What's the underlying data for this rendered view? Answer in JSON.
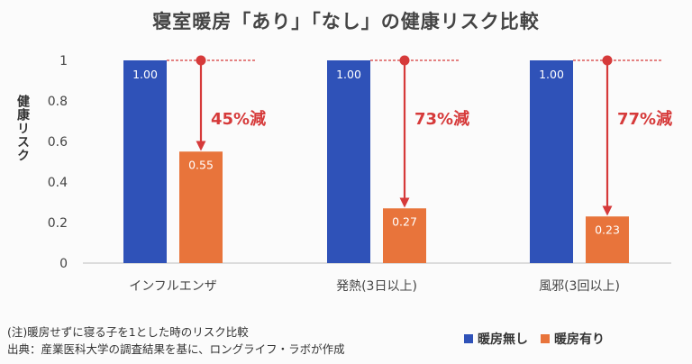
{
  "chart_data": {
    "type": "bar",
    "title": "寝室暖房「あり」「なし」の健康リスク比較",
    "ylabel": "健康リスク",
    "xlabel": "",
    "ylim": [
      0,
      1
    ],
    "yticks": [
      "1",
      "0.8",
      "0.6",
      "0.4",
      "0.2",
      "0"
    ],
    "grid": false,
    "categories": [
      "インフルエンザ",
      "発熱(3日以上)",
      "風邪(3回以上)"
    ],
    "series": [
      {
        "name": "暖房無し",
        "values": [
          1.0,
          1.0,
          1.0
        ],
        "labels": [
          "1.00",
          "1.00",
          "1.00"
        ],
        "color": "#2f52b8"
      },
      {
        "name": "暖房有り",
        "values": [
          0.55,
          0.27,
          0.23
        ],
        "labels": [
          "0.55",
          "0.27",
          "0.23"
        ],
        "color": "#e8743b"
      }
    ],
    "annotations": [
      "45%減",
      "73%減",
      "77%減"
    ],
    "annotation_color": "#d63a3a",
    "legend_position": "bottom-right"
  },
  "footnotes": [
    "(注)暖房せずに寝る子を1とした時のリスク比較",
    "出典：産業医科大学の調査結果を基に、ロングライフ・ラボが作成"
  ]
}
